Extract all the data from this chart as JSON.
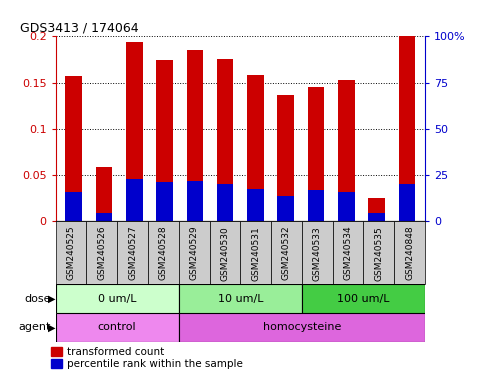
{
  "title": "GDS3413 / 174064",
  "samples": [
    "GSM240525",
    "GSM240526",
    "GSM240527",
    "GSM240528",
    "GSM240529",
    "GSM240530",
    "GSM240531",
    "GSM240532",
    "GSM240533",
    "GSM240534",
    "GSM240535",
    "GSM240848"
  ],
  "transformed_count": [
    0.157,
    0.058,
    0.194,
    0.175,
    0.185,
    0.176,
    0.158,
    0.137,
    0.145,
    0.153,
    0.025,
    0.2
  ],
  "percentile_rank": [
    0.031,
    0.009,
    0.045,
    0.042,
    0.043,
    0.04,
    0.035,
    0.027,
    0.033,
    0.031,
    0.009,
    0.04
  ],
  "bar_color": "#cc0000",
  "percentile_color": "#0000cc",
  "ylim": [
    0,
    0.2
  ],
  "yticks": [
    0,
    0.05,
    0.1,
    0.15,
    0.2
  ],
  "ytick_labels": [
    "0",
    "0.05",
    "0.1",
    "0.15",
    "0.2"
  ],
  "y2ticks": [
    0,
    25,
    50,
    75,
    100
  ],
  "y2tick_labels": [
    "0",
    "25",
    "50",
    "75",
    "100%"
  ],
  "dose_groups": [
    {
      "label": "0 um/L",
      "start": 0,
      "end": 4,
      "color": "#ccffcc"
    },
    {
      "label": "10 um/L",
      "start": 4,
      "end": 8,
      "color": "#99ee99"
    },
    {
      "label": "100 um/L",
      "start": 8,
      "end": 12,
      "color": "#44cc44"
    }
  ],
  "agent_groups": [
    {
      "label": "control",
      "start": 0,
      "end": 4,
      "color": "#ee88ee"
    },
    {
      "label": "homocysteine",
      "start": 4,
      "end": 12,
      "color": "#dd66dd"
    }
  ],
  "dose_label": "dose",
  "agent_label": "agent",
  "legend_red_label": "transformed count",
  "legend_blue_label": "percentile rank within the sample",
  "bar_width": 0.55,
  "xticklabel_bg": "#cccccc"
}
